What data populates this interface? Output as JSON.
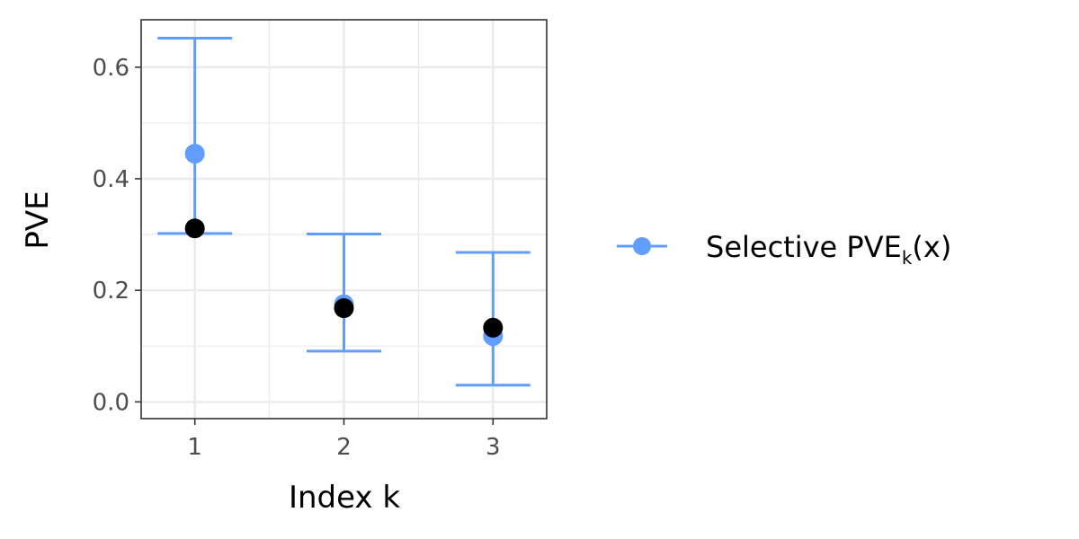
{
  "chart_data": {
    "type": "scatter",
    "xlabel": "Index k",
    "ylabel": "PVE",
    "categories": [
      "1",
      "2",
      "3"
    ],
    "xlim": [
      0.64,
      3.36
    ],
    "ylim": [
      -0.03,
      0.685
    ],
    "y_ticks": [
      0.0,
      0.2,
      0.4,
      0.6
    ],
    "y_tick_labels": [
      "0.0",
      "0.2",
      "0.4",
      "0.6"
    ],
    "grid": true,
    "legend_position": "right",
    "series": [
      {
        "name": "Selective PVE_k(x)",
        "legend_main": "Selective PVE",
        "legend_sub": "k",
        "legend_tail": "(x)",
        "color": "#619CFF",
        "values": [
          0.445,
          0.175,
          0.118
        ],
        "lower": [
          0.302,
          0.091,
          0.03
        ],
        "upper": [
          0.652,
          0.301,
          0.268
        ]
      },
      {
        "color": "#000000",
        "values": [
          0.311,
          0.168,
          0.133
        ]
      }
    ]
  }
}
